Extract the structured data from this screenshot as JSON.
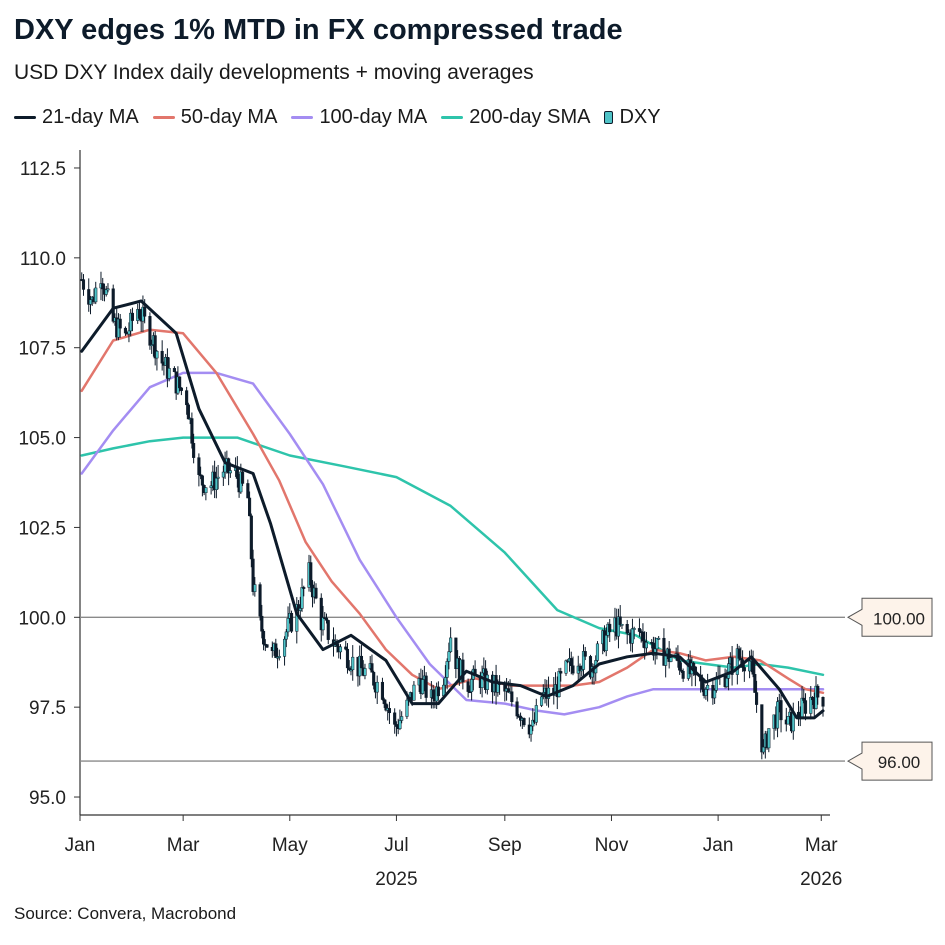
{
  "header": {
    "title": "DXY edges 1% MTD in FX compressed trade",
    "subtitle": "USD DXY Index daily developments + moving averages"
  },
  "source": "Source: Convera, Macrobond",
  "chart_data": {
    "type": "line",
    "x_range": [
      "2025-01-01",
      "2026-03-06"
    ],
    "ylim": [
      94.5,
      113.0
    ],
    "y_ticks": [
      95.0,
      97.5,
      100.0,
      102.5,
      105.0,
      107.5,
      110.0,
      112.5
    ],
    "y_tick_labels": [
      "95.0",
      "97.5",
      "100.0",
      "102.5",
      "105.0",
      "107.5",
      "110.0",
      "112.5"
    ],
    "x_ticks": [
      {
        "date": "2025-01-01",
        "label": "Jan"
      },
      {
        "date": "2025-03-01",
        "label": "Mar"
      },
      {
        "date": "2025-05-01",
        "label": "May"
      },
      {
        "date": "2025-07-01",
        "label": "Jul"
      },
      {
        "date": "2025-09-01",
        "label": "Sep"
      },
      {
        "date": "2025-11-01",
        "label": "Nov"
      },
      {
        "date": "2026-01-01",
        "label": "Jan"
      },
      {
        "date": "2026-03-01",
        "label": "Mar"
      }
    ],
    "year_labels": [
      {
        "date": "2025-07-01",
        "label": "2025"
      },
      {
        "date": "2026-03-01",
        "label": "2026"
      }
    ],
    "grid": false,
    "legend_position": "top-left",
    "reference_lines": [
      {
        "value": 100.0,
        "label": "100.00"
      },
      {
        "value": 96.0,
        "label": "96.00"
      }
    ],
    "series": [
      {
        "name": "21-day MA",
        "color": "#0d1b2a",
        "width": 3,
        "points": [
          [
            "2025-01-02",
            107.4
          ],
          [
            "2025-01-20",
            108.6
          ],
          [
            "2025-02-05",
            108.8
          ],
          [
            "2025-02-25",
            107.9
          ],
          [
            "2025-03-10",
            105.8
          ],
          [
            "2025-03-25",
            104.3
          ],
          [
            "2025-04-10",
            104.0
          ],
          [
            "2025-04-20",
            102.6
          ],
          [
            "2025-05-05",
            100.1
          ],
          [
            "2025-05-20",
            99.1
          ],
          [
            "2025-06-05",
            99.5
          ],
          [
            "2025-06-25",
            98.8
          ],
          [
            "2025-07-10",
            97.6
          ],
          [
            "2025-07-25",
            97.6
          ],
          [
            "2025-08-10",
            98.5
          ],
          [
            "2025-08-25",
            98.2
          ],
          [
            "2025-09-10",
            98.1
          ],
          [
            "2025-09-25",
            97.8
          ],
          [
            "2025-10-10",
            98.1
          ],
          [
            "2025-10-25",
            98.7
          ],
          [
            "2025-11-10",
            98.9
          ],
          [
            "2025-11-25",
            99.0
          ],
          [
            "2025-12-10",
            98.9
          ],
          [
            "2025-12-25",
            98.2
          ],
          [
            "2026-01-10",
            98.5
          ],
          [
            "2026-01-20",
            98.9
          ],
          [
            "2026-02-05",
            98.0
          ],
          [
            "2026-02-15",
            97.2
          ],
          [
            "2026-02-25",
            97.2
          ],
          [
            "2026-03-02",
            97.4
          ]
        ]
      },
      {
        "name": "50-day MA",
        "color": "#e2766c",
        "width": 2.5,
        "points": [
          [
            "2025-01-02",
            106.3
          ],
          [
            "2025-01-20",
            107.7
          ],
          [
            "2025-02-10",
            108.0
          ],
          [
            "2025-03-01",
            107.9
          ],
          [
            "2025-03-20",
            106.8
          ],
          [
            "2025-04-10",
            105.1
          ],
          [
            "2025-04-25",
            103.8
          ],
          [
            "2025-05-10",
            102.1
          ],
          [
            "2025-05-25",
            101.0
          ],
          [
            "2025-06-10",
            100.1
          ],
          [
            "2025-06-25",
            99.1
          ],
          [
            "2025-07-10",
            98.4
          ],
          [
            "2025-07-25",
            98.0
          ],
          [
            "2025-08-15",
            98.3
          ],
          [
            "2025-09-05",
            98.1
          ],
          [
            "2025-09-25",
            98.1
          ],
          [
            "2025-10-10",
            98.1
          ],
          [
            "2025-10-25",
            98.2
          ],
          [
            "2025-11-10",
            98.6
          ],
          [
            "2025-11-25",
            99.1
          ],
          [
            "2025-12-10",
            99.0
          ],
          [
            "2025-12-25",
            98.8
          ],
          [
            "2026-01-10",
            98.9
          ],
          [
            "2026-01-25",
            98.8
          ],
          [
            "2026-02-10",
            98.3
          ],
          [
            "2026-02-20",
            98.0
          ],
          [
            "2026-03-02",
            97.9
          ]
        ]
      },
      {
        "name": "100-day MA",
        "color": "#a48df2",
        "width": 2.5,
        "points": [
          [
            "2025-01-02",
            104.0
          ],
          [
            "2025-01-20",
            105.2
          ],
          [
            "2025-02-10",
            106.4
          ],
          [
            "2025-03-01",
            106.8
          ],
          [
            "2025-03-20",
            106.8
          ],
          [
            "2025-04-10",
            106.5
          ],
          [
            "2025-05-01",
            105.1
          ],
          [
            "2025-05-20",
            103.7
          ],
          [
            "2025-06-10",
            101.6
          ],
          [
            "2025-07-01",
            100.0
          ],
          [
            "2025-07-20",
            98.7
          ],
          [
            "2025-08-10",
            97.7
          ],
          [
            "2025-09-01",
            97.6
          ],
          [
            "2025-09-20",
            97.4
          ],
          [
            "2025-10-05",
            97.3
          ],
          [
            "2025-10-25",
            97.5
          ],
          [
            "2025-11-10",
            97.8
          ],
          [
            "2025-11-25",
            98.0
          ],
          [
            "2025-12-10",
            98.0
          ],
          [
            "2025-12-25",
            98.0
          ],
          [
            "2026-01-10",
            98.0
          ],
          [
            "2026-02-10",
            98.0
          ],
          [
            "2026-03-02",
            98.0
          ]
        ]
      },
      {
        "name": "200-day SMA",
        "color": "#2ec4ab",
        "width": 2.5,
        "points": [
          [
            "2025-01-02",
            104.5
          ],
          [
            "2025-01-20",
            104.7
          ],
          [
            "2025-02-10",
            104.9
          ],
          [
            "2025-03-01",
            105.0
          ],
          [
            "2025-04-01",
            105.0
          ],
          [
            "2025-05-01",
            104.5
          ],
          [
            "2025-06-01",
            104.2
          ],
          [
            "2025-07-01",
            103.9
          ],
          [
            "2025-08-01",
            103.1
          ],
          [
            "2025-09-01",
            101.8
          ],
          [
            "2025-10-01",
            100.2
          ],
          [
            "2025-10-25",
            99.7
          ],
          [
            "2025-11-15",
            99.5
          ],
          [
            "2025-12-10",
            98.8
          ],
          [
            "2025-12-25",
            98.7
          ],
          [
            "2026-01-10",
            98.6
          ],
          [
            "2026-01-25",
            98.7
          ],
          [
            "2026-02-10",
            98.6
          ],
          [
            "2026-03-02",
            98.4
          ]
        ]
      }
    ],
    "candles": {
      "name": "DXY",
      "up_color": "#4fc3c7",
      "down_color": "#0d1b2a",
      "path": [
        [
          "2025-01-02",
          109.4
        ],
        [
          "2025-01-08",
          108.8
        ],
        [
          "2025-01-13",
          109.6
        ],
        [
          "2025-01-20",
          108.2
        ],
        [
          "2025-01-27",
          107.8
        ],
        [
          "2025-02-03",
          108.6
        ],
        [
          "2025-02-10",
          107.9
        ],
        [
          "2025-02-17",
          107.1
        ],
        [
          "2025-02-24",
          106.6
        ],
        [
          "2025-03-03",
          106.1
        ],
        [
          "2025-03-10",
          103.8
        ],
        [
          "2025-03-17",
          103.7
        ],
        [
          "2025-03-24",
          104.1
        ],
        [
          "2025-03-31",
          104.0
        ],
        [
          "2025-04-07",
          103.3
        ],
        [
          "2025-04-10",
          100.9
        ],
        [
          "2025-04-14",
          99.8
        ],
        [
          "2025-04-21",
          98.9
        ],
        [
          "2025-04-28",
          99.5
        ],
        [
          "2025-05-05",
          100.2
        ],
        [
          "2025-05-12",
          101.2
        ],
        [
          "2025-05-19",
          99.9
        ],
        [
          "2025-05-26",
          99.3
        ],
        [
          "2025-06-02",
          99.0
        ],
        [
          "2025-06-09",
          98.6
        ],
        [
          "2025-06-16",
          98.4
        ],
        [
          "2025-06-23",
          98.0
        ],
        [
          "2025-06-30",
          96.9
        ],
        [
          "2025-07-07",
          97.5
        ],
        [
          "2025-07-14",
          98.3
        ],
        [
          "2025-07-21",
          97.7
        ],
        [
          "2025-07-28",
          98.4
        ],
        [
          "2025-08-01",
          99.5
        ],
        [
          "2025-08-05",
          98.6
        ],
        [
          "2025-08-11",
          98.2
        ],
        [
          "2025-08-18",
          98.3
        ],
        [
          "2025-08-25",
          98.1
        ],
        [
          "2025-09-01",
          97.9
        ],
        [
          "2025-09-08",
          97.5
        ],
        [
          "2025-09-17",
          96.9
        ],
        [
          "2025-09-22",
          97.8
        ],
        [
          "2025-09-29",
          97.9
        ],
        [
          "2025-10-06",
          98.5
        ],
        [
          "2025-10-13",
          98.9
        ],
        [
          "2025-10-20",
          98.6
        ],
        [
          "2025-10-27",
          99.3
        ],
        [
          "2025-11-03",
          99.8
        ],
        [
          "2025-11-10",
          99.5
        ],
        [
          "2025-11-17",
          99.6
        ],
        [
          "2025-11-24",
          99.2
        ],
        [
          "2025-12-01",
          99.0
        ],
        [
          "2025-12-08",
          98.8
        ],
        [
          "2025-12-15",
          98.5
        ],
        [
          "2025-12-22",
          98.1
        ],
        [
          "2025-12-29",
          98.1
        ],
        [
          "2026-01-05",
          98.4
        ],
        [
          "2026-01-12",
          98.9
        ],
        [
          "2026-01-19",
          98.8
        ],
        [
          "2026-01-23",
          97.6
        ],
        [
          "2026-01-27",
          96.2
        ],
        [
          "2026-01-30",
          96.9
        ],
        [
          "2026-02-05",
          97.4
        ],
        [
          "2026-02-10",
          97.0
        ],
        [
          "2026-02-17",
          97.4
        ],
        [
          "2026-02-24",
          97.8
        ],
        [
          "2026-03-02",
          97.8
        ]
      ]
    }
  }
}
